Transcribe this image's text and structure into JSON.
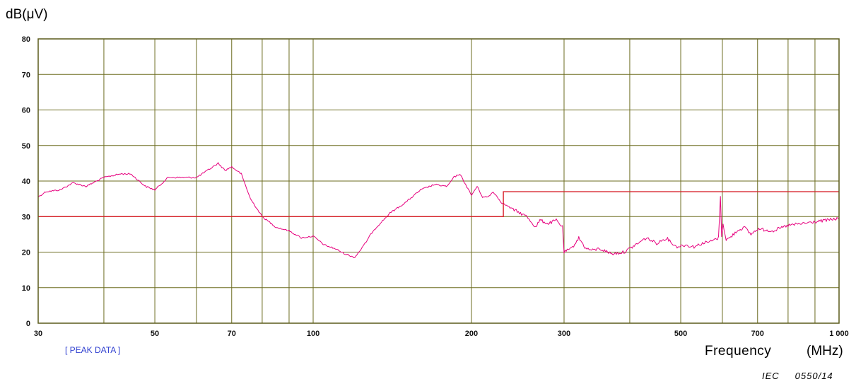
{
  "chart_data": {
    "type": "line",
    "ylabel": "dB(μV)",
    "xlabel": "Frequency",
    "xunit": "(MHz)",
    "annotation": "[ PEAK DATA ]",
    "figure_id": {
      "prefix": "IEC",
      "number": "0550/14"
    },
    "xscale": "log",
    "xlim": [
      30,
      1000
    ],
    "ylim": [
      0,
      80
    ],
    "grid": true,
    "x_ticks": [
      {
        "value": 30,
        "label": "30"
      },
      {
        "value": 50,
        "label": "50"
      },
      {
        "value": 70,
        "label": "70"
      },
      {
        "value": 100,
        "label": "100"
      },
      {
        "value": 200,
        "label": "200"
      },
      {
        "value": 300,
        "label": "300"
      },
      {
        "value": 500,
        "label": "500"
      },
      {
        "value": 700,
        "label": "700"
      },
      {
        "value": 1000,
        "label": "1 000"
      }
    ],
    "x_minor_grid": [
      40,
      60,
      80,
      90,
      400,
      600,
      800,
      900
    ],
    "y_ticks": [
      0,
      10,
      20,
      30,
      40,
      50,
      60,
      70,
      80
    ],
    "colors": {
      "grid": "#6b6b1f",
      "frame": "#5a5a1a",
      "measurement": "#e6007e",
      "limit": "#d8202a",
      "annotation": "#2f3fd0"
    },
    "series": [
      {
        "role": "measurement",
        "x": [
          30,
          31,
          33,
          35,
          37,
          40,
          43,
          45,
          48,
          50,
          53,
          57,
          60,
          63,
          66,
          68,
          70,
          73,
          76,
          80,
          85,
          90,
          95,
          100,
          105,
          110,
          115,
          120,
          125,
          130,
          140,
          150,
          160,
          170,
          180,
          185,
          190,
          195,
          200,
          205,
          210,
          215,
          220,
          228,
          240,
          255,
          265,
          270,
          280,
          290,
          298,
          300,
          310,
          320,
          330,
          340,
          350,
          370,
          390,
          410,
          430,
          450,
          470,
          490,
          510,
          530,
          550,
          570,
          590,
          595,
          598,
          602,
          610,
          620,
          640,
          660,
          680,
          700,
          750,
          800,
          850,
          900,
          950,
          1000
        ],
        "y": [
          35.5,
          37,
          37.5,
          39.5,
          38.5,
          41,
          42,
          42,
          38.5,
          37.5,
          41,
          41,
          41,
          43,
          45,
          43,
          44,
          42,
          35,
          30,
          27,
          26,
          24,
          24.5,
          22,
          21,
          19.5,
          18.5,
          22,
          26,
          31,
          34,
          37.5,
          39,
          38.5,
          41,
          42,
          39,
          36,
          38.5,
          35.5,
          35.5,
          37,
          34,
          32,
          30,
          27,
          29,
          28,
          29,
          27,
          20,
          21,
          24,
          21,
          20.5,
          21,
          19.5,
          20,
          22,
          24,
          22.5,
          24,
          21.5,
          22,
          21.5,
          22.5,
          23,
          24,
          36,
          24,
          28,
          23.5,
          24,
          26,
          27,
          25,
          26.5,
          26,
          27.5,
          28,
          28.5,
          29,
          29.5
        ]
      },
      {
        "role": "limit",
        "x": [
          30,
          230,
          230,
          1000
        ],
        "y": [
          30,
          30,
          37,
          37
        ]
      }
    ]
  }
}
